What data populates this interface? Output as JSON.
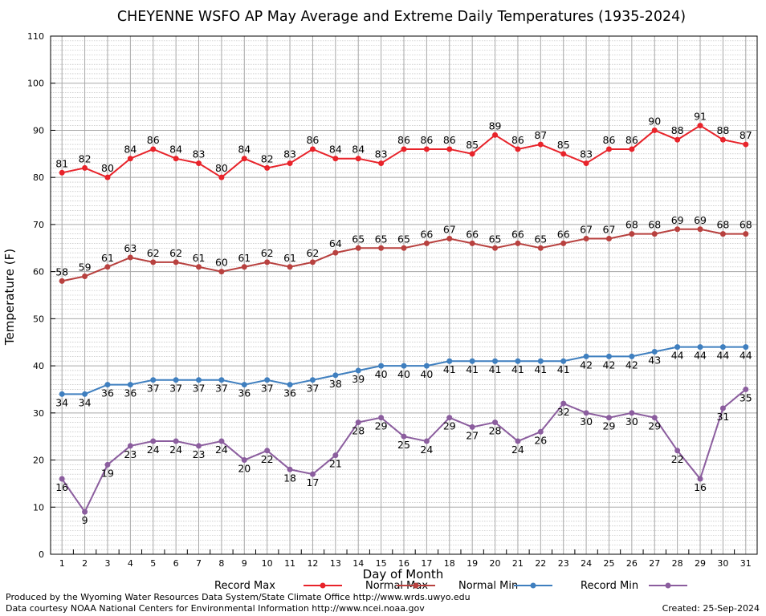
{
  "chart_data": {
    "type": "line",
    "title": "CHEYENNE WSFO AP May Average and Extreme Daily Temperatures (1935-2024)",
    "xlabel": "Day of Month",
    "ylabel": "Temperature (F)",
    "ylim": [
      0,
      110
    ],
    "y_ticks": [
      0,
      10,
      20,
      30,
      40,
      50,
      60,
      70,
      80,
      90,
      100,
      110
    ],
    "x": [
      1,
      2,
      3,
      4,
      5,
      6,
      7,
      8,
      9,
      10,
      11,
      12,
      13,
      14,
      15,
      16,
      17,
      18,
      19,
      20,
      21,
      22,
      23,
      24,
      25,
      26,
      27,
      28,
      29,
      30,
      31
    ],
    "grid": true,
    "legend_position": "bottom",
    "series": [
      {
        "name": "Record Max",
        "color": "#e8232a",
        "label_pos": "above",
        "values": [
          81,
          82,
          80,
          84,
          86,
          84,
          83,
          80,
          84,
          82,
          83,
          86,
          84,
          84,
          83,
          86,
          86,
          86,
          85,
          89,
          86,
          87,
          85,
          83,
          86,
          86,
          90,
          88,
          91,
          88,
          87
        ]
      },
      {
        "name": "Normal Max",
        "color": "#b8413f",
        "label_pos": "above",
        "values": [
          58,
          59,
          61,
          63,
          62,
          62,
          61,
          60,
          61,
          62,
          61,
          62,
          64,
          65,
          65,
          65,
          66,
          67,
          66,
          65,
          66,
          65,
          66,
          67,
          67,
          68,
          68,
          69,
          69,
          68,
          68
        ]
      },
      {
        "name": "Normal Min",
        "color": "#3f7fbf",
        "label_pos": "below",
        "values": [
          34,
          34,
          36,
          36,
          37,
          37,
          37,
          37,
          36,
          37,
          36,
          37,
          38,
          39,
          40,
          40,
          40,
          41,
          41,
          41,
          41,
          41,
          41,
          42,
          42,
          42,
          43,
          44,
          44,
          44,
          44
        ]
      },
      {
        "name": "Record Min",
        "color": "#8b5d9e",
        "label_pos": "below",
        "values": [
          16,
          9,
          19,
          23,
          24,
          24,
          23,
          24,
          20,
          22,
          18,
          17,
          21,
          28,
          29,
          25,
          24,
          29,
          27,
          28,
          24,
          26,
          32,
          30,
          29,
          30,
          29,
          22,
          16,
          31,
          35
        ]
      }
    ]
  },
  "footer": {
    "line1": "Produced by the Wyoming Water Resources Data System/State Climate Office http://www.wrds.uwyo.edu",
    "line2": "Data courtesy NOAA National Centers for Environmental Information http://www.ncei.noaa.gov",
    "created": "Created:  25-Sep-2024"
  }
}
